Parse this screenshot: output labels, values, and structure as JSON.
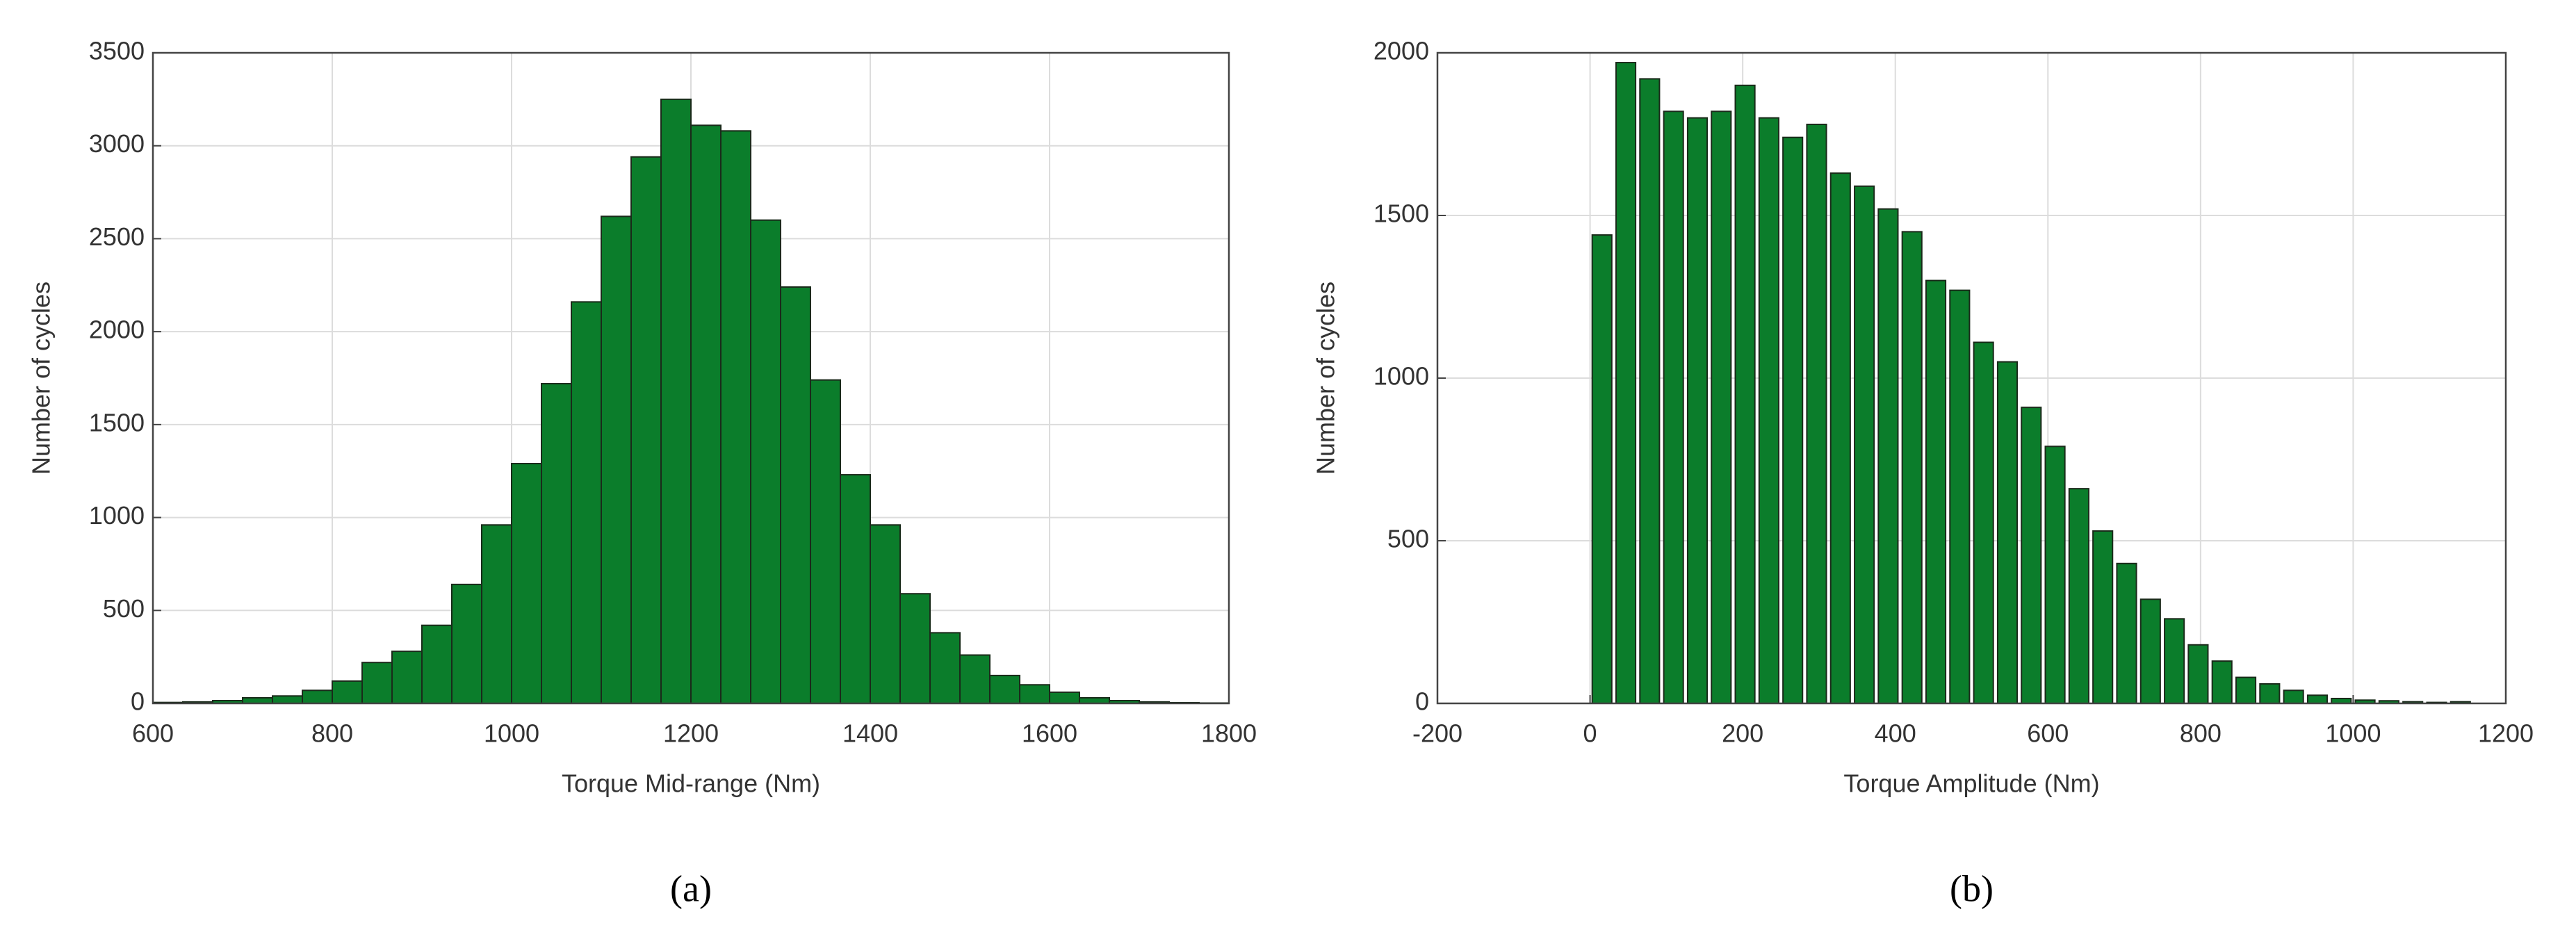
{
  "chart_data": [
    {
      "type": "histogram",
      "caption": "(a)",
      "xlabel": "Torque Mid-range (Nm)",
      "ylabel": "Number of cycles",
      "bins": [
        600,
        633.33,
        666.67,
        700,
        733.33,
        766.67,
        800,
        833.33,
        866.67,
        900,
        933.33,
        966.67,
        1000,
        1033.33,
        1066.67,
        1100,
        1133.33,
        1166.67,
        1200,
        1233.33,
        1266.67,
        1300,
        1333.33,
        1366.67,
        1400,
        1433.33,
        1466.67,
        1500,
        1533.33,
        1566.67,
        1600,
        1633.33,
        1666.67,
        1700,
        1733.33,
        1766.67,
        1800
      ],
      "counts": [
        5,
        8,
        15,
        30,
        40,
        70,
        120,
        220,
        280,
        420,
        640,
        960,
        1290,
        1720,
        2160,
        2620,
        2940,
        3250,
        3110,
        3080,
        2600,
        2240,
        1740,
        1230,
        960,
        590,
        380,
        260,
        150,
        100,
        60,
        30,
        15,
        8,
        4,
        2
      ],
      "color": "#0b7d2b",
      "rwidth": 1,
      "xlim": [
        600,
        1800
      ],
      "xticks": [
        600,
        800,
        1000,
        1200,
        1400,
        1600,
        1800
      ],
      "ylim": [
        0,
        3500
      ],
      "yticks": [
        0,
        500,
        1000,
        1500,
        2000,
        2500,
        3000,
        3500
      ],
      "grid": true
    },
    {
      "type": "histogram",
      "caption": "(b)",
      "xlabel": "Torque Amplitude (Nm)",
      "ylabel": "Number of cycles",
      "bins": [
        0,
        31.25,
        62.5,
        93.75,
        125,
        156.25,
        187.5,
        218.75,
        250,
        281.25,
        312.5,
        343.75,
        375,
        406.25,
        437.5,
        468.75,
        500,
        531.25,
        562.5,
        593.75,
        625,
        656.25,
        687.5,
        718.75,
        750,
        781.25,
        812.5,
        843.75,
        875,
        906.25,
        937.5,
        968.75,
        1000,
        1031.25,
        1062.5,
        1093.75,
        1125,
        1156.25
      ],
      "counts": [
        1440,
        1970,
        1920,
        1820,
        1800,
        1820,
        1900,
        1800,
        1740,
        1780,
        1630,
        1590,
        1520,
        1450,
        1300,
        1270,
        1110,
        1050,
        910,
        790,
        660,
        530,
        430,
        320,
        260,
        180,
        130,
        80,
        60,
        40,
        25,
        15,
        10,
        8,
        5,
        3,
        5
      ],
      "color": "#0b7d2b",
      "rwidth": 0.82,
      "xlim": [
        -200,
        1200
      ],
      "xticks": [
        -200,
        0,
        200,
        400,
        600,
        800,
        1000,
        1200
      ],
      "ylim": [
        0,
        2000
      ],
      "yticks": [
        0,
        500,
        1000,
        1500,
        2000
      ],
      "grid": true
    }
  ]
}
